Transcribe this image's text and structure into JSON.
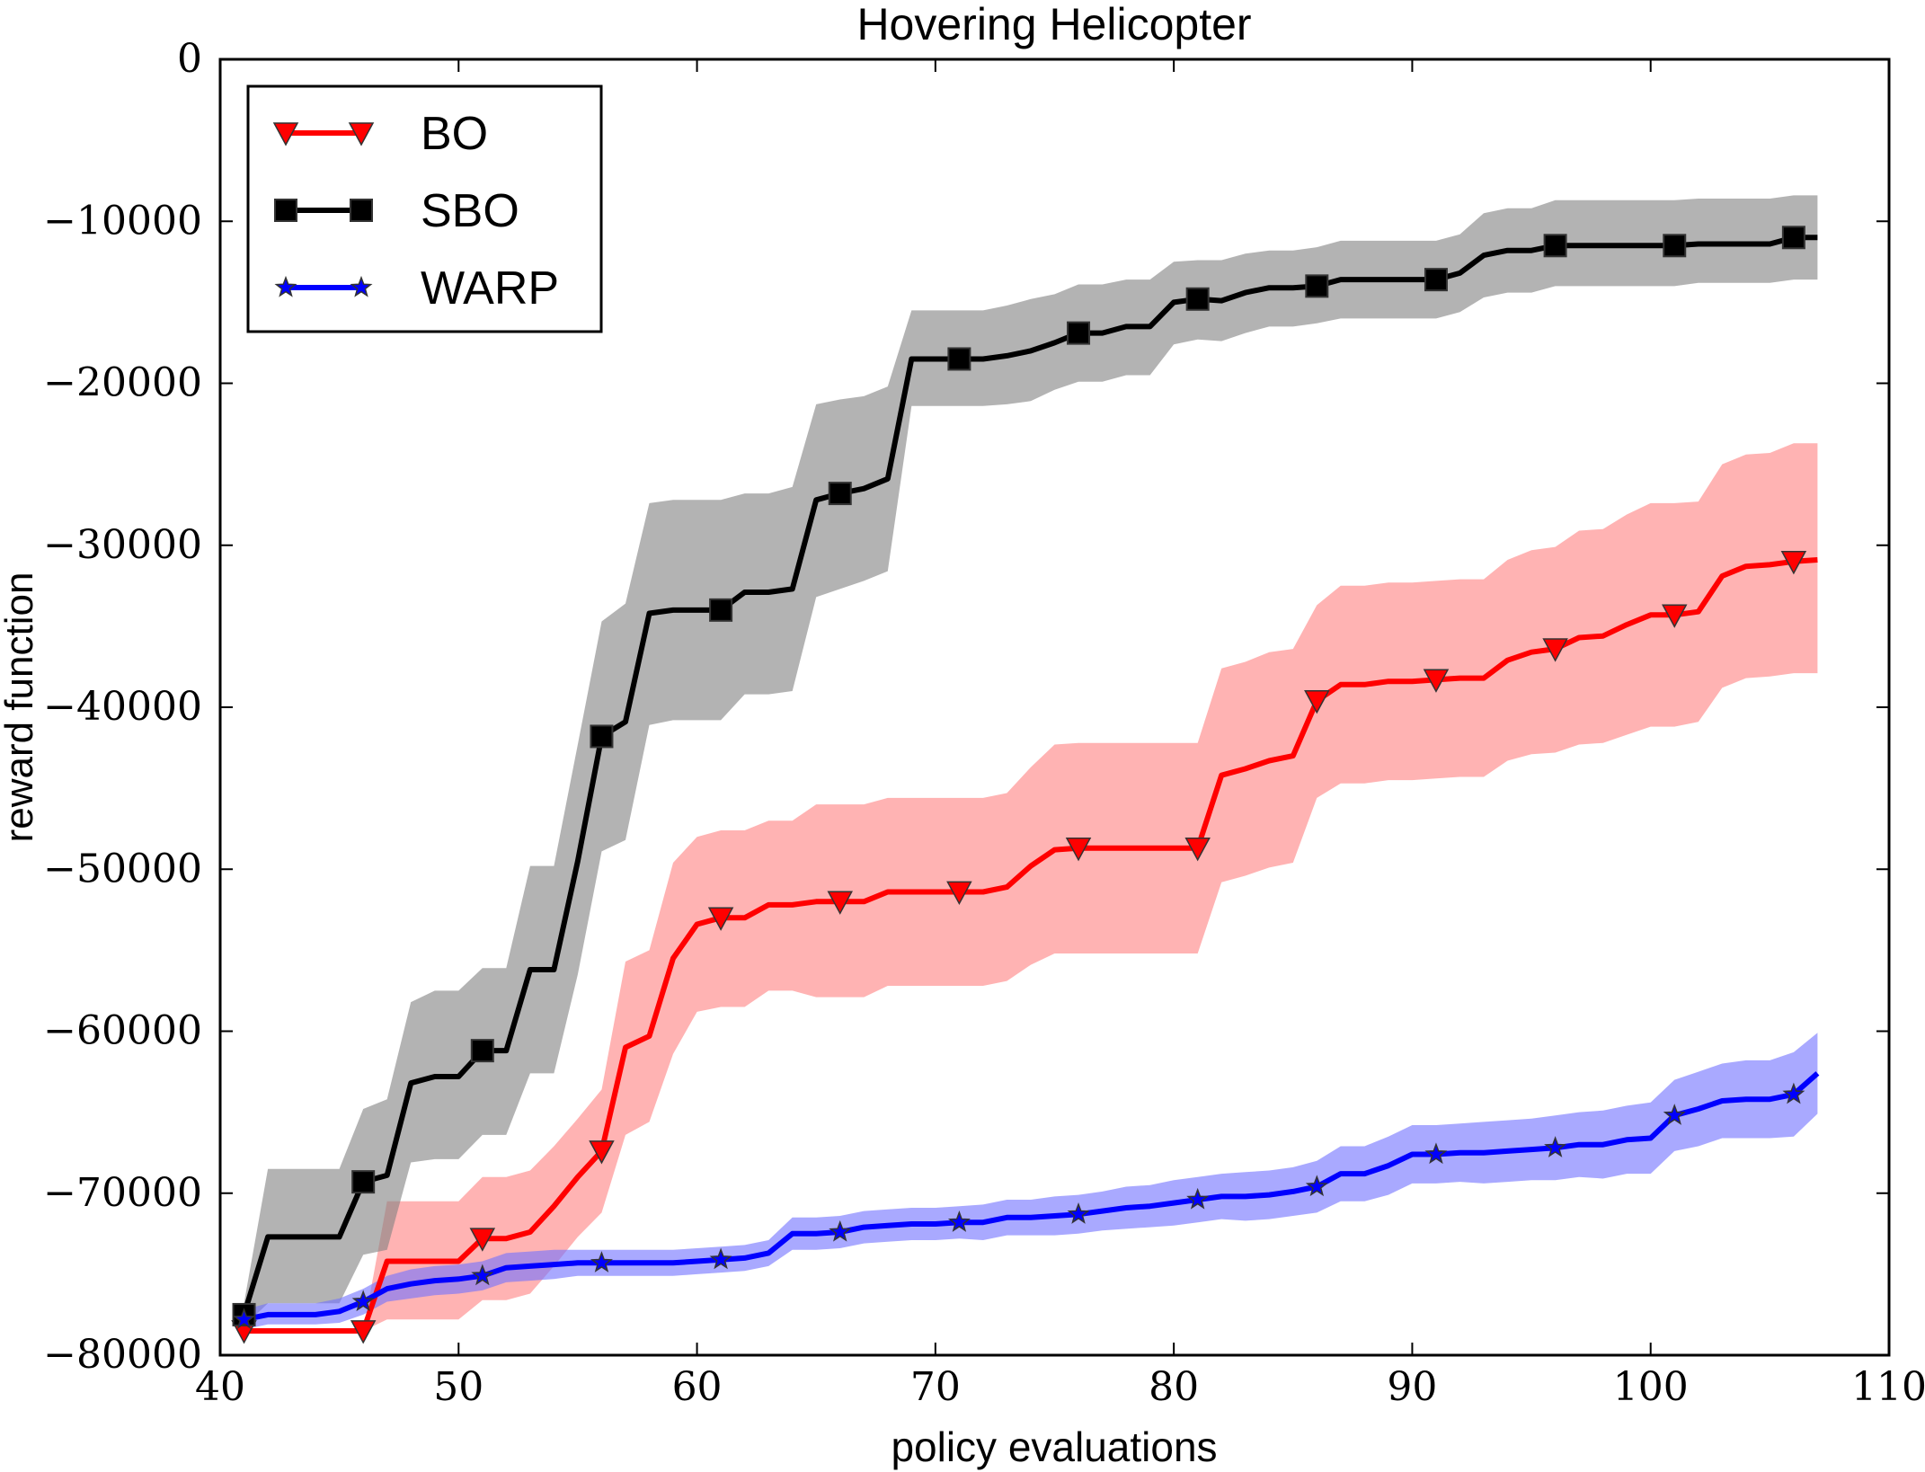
{
  "chart_data": {
    "type": "line",
    "title": "Hovering Helicopter",
    "xlabel": "policy evaluations",
    "ylabel": "reward function",
    "xlim": [
      40,
      110
    ],
    "ylim": [
      -80000,
      0
    ],
    "xticks": [
      40,
      50,
      60,
      70,
      80,
      90,
      100,
      110
    ],
    "yticks": [
      0,
      -10000,
      -20000,
      -30000,
      -40000,
      -50000,
      -60000,
      -70000,
      -80000
    ],
    "xtick_labels": [
      "40",
      "50",
      "60",
      "70",
      "80",
      "90",
      "100",
      "110"
    ],
    "ytick_labels": [
      "0",
      "−10000",
      "−20000",
      "−30000",
      "−40000",
      "−50000",
      "−60000",
      "−70000",
      "−80000"
    ],
    "grid": false,
    "legend_position": "top-left",
    "series": [
      {
        "name": "BO",
        "color": "#ff0000",
        "band_color": "#ff8080",
        "marker": "triangle-down",
        "x": [
          41,
          46,
          47,
          48,
          49,
          50,
          51,
          52,
          53,
          54,
          55,
          56,
          57,
          58,
          59,
          60,
          61,
          62,
          63,
          64,
          65,
          66,
          67,
          68,
          69,
          70,
          71,
          72,
          73,
          74,
          75,
          76,
          77,
          78,
          79,
          80,
          81,
          82,
          83,
          84,
          85,
          86,
          87,
          88,
          89,
          90,
          91,
          92,
          93,
          94,
          95,
          96,
          97,
          98,
          99,
          100,
          101,
          102,
          103,
          104,
          105,
          106,
          107
        ],
        "mean": [
          -78500,
          -78500,
          -74200,
          -74200,
          -74200,
          -74200,
          -72800,
          -72800,
          -72400,
          -70800,
          -69000,
          -67400,
          -61000,
          -60300,
          -55500,
          -53400,
          -53000,
          -53000,
          -52200,
          -52200,
          -52000,
          -52000,
          -52000,
          -51400,
          -51400,
          -51400,
          -51400,
          -51400,
          -51100,
          -49800,
          -48800,
          -48700,
          -48700,
          -48700,
          -48700,
          -48700,
          -48700,
          -44200,
          -43800,
          -43300,
          -43000,
          -39600,
          -38600,
          -38600,
          -38400,
          -38400,
          -38300,
          -38200,
          -38200,
          -37100,
          -36600,
          -36400,
          -35700,
          -35600,
          -34900,
          -34300,
          -34300,
          -34100,
          -31900,
          -31300,
          -31200,
          -31000,
          -30900
        ],
        "upper": [
          -78500,
          -78500,
          -70500,
          -70500,
          -70500,
          -70500,
          -69000,
          -69000,
          -68600,
          -67100,
          -65400,
          -63600,
          -55700,
          -55000,
          -49600,
          -48000,
          -47600,
          -47600,
          -47000,
          -47000,
          -46000,
          -46000,
          -46000,
          -45600,
          -45600,
          -45600,
          -45600,
          -45600,
          -45300,
          -43700,
          -42300,
          -42200,
          -42200,
          -42200,
          -42200,
          -42200,
          -42200,
          -37600,
          -37200,
          -36600,
          -36400,
          -33700,
          -32500,
          -32500,
          -32300,
          -32300,
          -32200,
          -32100,
          -32100,
          -30900,
          -30300,
          -30100,
          -29100,
          -29000,
          -28100,
          -27400,
          -27400,
          -27300,
          -25000,
          -24400,
          -24300,
          -23700,
          -23700
        ],
        "lower": [
          -78500,
          -78500,
          -77800,
          -77800,
          -77800,
          -77800,
          -76600,
          -76600,
          -76200,
          -74500,
          -72700,
          -71200,
          -66400,
          -65600,
          -61400,
          -58800,
          -58500,
          -58500,
          -57500,
          -57500,
          -57900,
          -57900,
          -57900,
          -57200,
          -57200,
          -57200,
          -57200,
          -57200,
          -56900,
          -55900,
          -55200,
          -55200,
          -55200,
          -55200,
          -55200,
          -55200,
          -55200,
          -50800,
          -50400,
          -49900,
          -49600,
          -45600,
          -44700,
          -44700,
          -44500,
          -44500,
          -44400,
          -44300,
          -44300,
          -43300,
          -42900,
          -42800,
          -42300,
          -42200,
          -41700,
          -41200,
          -41200,
          -40900,
          -38800,
          -38200,
          -38100,
          -37900,
          -37900
        ],
        "marker_x": [
          41,
          46,
          51,
          56,
          61,
          66,
          71,
          76,
          81,
          86,
          91,
          96,
          101,
          106
        ]
      },
      {
        "name": "SBO",
        "color": "#000000",
        "band_color": "#808080",
        "marker": "square",
        "x": [
          41,
          42,
          43,
          44,
          45,
          46,
          47,
          48,
          49,
          50,
          51,
          52,
          53,
          54,
          55,
          56,
          57,
          58,
          59,
          60,
          61,
          62,
          63,
          64,
          65,
          66,
          67,
          68,
          69,
          70,
          71,
          72,
          73,
          74,
          75,
          76,
          77,
          78,
          79,
          80,
          81,
          82,
          83,
          84,
          85,
          86,
          87,
          88,
          89,
          90,
          91,
          92,
          93,
          94,
          95,
          96,
          97,
          98,
          99,
          100,
          101,
          102,
          103,
          104,
          105,
          106,
          107
        ],
        "mean": [
          -77500,
          -72700,
          -72700,
          -72700,
          -72700,
          -69300,
          -68900,
          -63200,
          -62800,
          -62800,
          -61200,
          -61200,
          -56200,
          -56200,
          -49500,
          -41800,
          -40900,
          -34200,
          -34000,
          -34000,
          -34000,
          -32900,
          -32900,
          -32700,
          -27200,
          -26800,
          -26500,
          -25900,
          -18500,
          -18500,
          -18500,
          -18500,
          -18300,
          -18000,
          -17500,
          -16900,
          -16900,
          -16500,
          -16500,
          -15000,
          -14800,
          -14900,
          -14400,
          -14100,
          -14100,
          -14000,
          -13600,
          -13600,
          -13600,
          -13600,
          -13600,
          -13200,
          -12100,
          -11800,
          -11800,
          -11500,
          -11500,
          -11500,
          -11500,
          -11500,
          -11500,
          -11400,
          -11400,
          -11400,
          -11400,
          -11000,
          -11000
        ],
        "upper": [
          -76800,
          -68500,
          -68500,
          -68500,
          -68500,
          -64800,
          -64200,
          -58200,
          -57500,
          -57500,
          -56100,
          -56100,
          -49800,
          -49800,
          -42300,
          -34700,
          -33600,
          -27400,
          -27200,
          -27200,
          -27200,
          -26800,
          -26800,
          -26400,
          -21300,
          -21000,
          -20800,
          -20200,
          -15500,
          -15500,
          -15500,
          -15500,
          -15200,
          -14800,
          -14500,
          -13900,
          -13900,
          -13600,
          -13600,
          -12500,
          -12400,
          -12400,
          -12000,
          -11800,
          -11800,
          -11600,
          -11200,
          -11200,
          -11200,
          -11200,
          -11200,
          -10800,
          -9500,
          -9200,
          -9200,
          -8700,
          -8700,
          -8700,
          -8700,
          -8700,
          -8700,
          -8600,
          -8600,
          -8600,
          -8600,
          -8400,
          -8400
        ],
        "lower": [
          -78200,
          -76800,
          -76800,
          -76800,
          -76800,
          -73800,
          -73500,
          -68100,
          -67900,
          -67900,
          -66400,
          -66400,
          -62600,
          -62600,
          -56500,
          -48900,
          -48200,
          -41100,
          -40800,
          -40800,
          -40800,
          -39200,
          -39200,
          -39000,
          -33200,
          -32700,
          -32200,
          -31600,
          -21400,
          -21400,
          -21400,
          -21400,
          -21300,
          -21100,
          -20400,
          -19900,
          -19900,
          -19500,
          -19500,
          -17600,
          -17300,
          -17400,
          -16900,
          -16500,
          -16500,
          -16300,
          -16000,
          -16000,
          -16000,
          -16000,
          -16000,
          -15600,
          -14700,
          -14400,
          -14400,
          -14000,
          -14000,
          -14000,
          -14000,
          -14000,
          -14000,
          -13800,
          -13800,
          -13800,
          -13800,
          -13600,
          -13600
        ],
        "marker_x": [
          41,
          46,
          51,
          56,
          61,
          66,
          71,
          76,
          81,
          86,
          91,
          96,
          101,
          106
        ]
      },
      {
        "name": "WARP",
        "color": "#0000ff",
        "band_color": "#7070ff",
        "marker": "star",
        "x": [
          41,
          42,
          43,
          44,
          45,
          46,
          47,
          48,
          49,
          50,
          51,
          52,
          53,
          54,
          55,
          56,
          57,
          58,
          59,
          60,
          61,
          62,
          63,
          64,
          65,
          66,
          67,
          68,
          69,
          70,
          71,
          72,
          73,
          74,
          75,
          76,
          77,
          78,
          79,
          80,
          81,
          82,
          83,
          84,
          85,
          86,
          87,
          88,
          89,
          90,
          91,
          92,
          93,
          94,
          95,
          96,
          97,
          98,
          99,
          100,
          101,
          102,
          103,
          104,
          105,
          106,
          107
        ],
        "mean": [
          -77800,
          -77500,
          -77500,
          -77500,
          -77300,
          -76700,
          -75900,
          -75600,
          -75400,
          -75300,
          -75100,
          -74600,
          -74500,
          -74400,
          -74300,
          -74300,
          -74300,
          -74300,
          -74300,
          -74200,
          -74100,
          -74000,
          -73700,
          -72500,
          -72500,
          -72400,
          -72100,
          -72000,
          -71900,
          -71900,
          -71800,
          -71800,
          -71500,
          -71500,
          -71400,
          -71300,
          -71100,
          -70900,
          -70800,
          -70600,
          -70400,
          -70200,
          -70200,
          -70100,
          -69900,
          -69600,
          -68800,
          -68800,
          -68300,
          -67600,
          -67600,
          -67500,
          -67500,
          -67400,
          -67300,
          -67200,
          -67000,
          -67000,
          -66700,
          -66600,
          -65200,
          -64800,
          -64300,
          -64200,
          -64200,
          -63900,
          -62600
        ],
        "upper": [
          -77200,
          -76800,
          -76800,
          -76800,
          -76500,
          -75900,
          -75100,
          -74700,
          -74500,
          -74400,
          -74200,
          -73700,
          -73600,
          -73500,
          -73500,
          -73500,
          -73500,
          -73500,
          -73500,
          -73400,
          -73300,
          -73200,
          -72900,
          -71500,
          -71500,
          -71400,
          -71100,
          -71000,
          -70900,
          -70900,
          -70800,
          -70700,
          -70400,
          -70400,
          -70200,
          -70100,
          -69900,
          -69600,
          -69500,
          -69200,
          -69000,
          -68800,
          -68700,
          -68600,
          -68400,
          -68000,
          -67100,
          -67100,
          -66500,
          -65800,
          -65800,
          -65700,
          -65600,
          -65500,
          -65400,
          -65200,
          -65000,
          -64900,
          -64600,
          -64400,
          -63000,
          -62500,
          -62000,
          -61800,
          -61800,
          -61300,
          -60100
        ],
        "lower": [
          -78400,
          -78100,
          -78100,
          -78100,
          -78000,
          -77500,
          -76700,
          -76500,
          -76300,
          -76200,
          -76000,
          -75500,
          -75400,
          -75300,
          -75100,
          -75100,
          -75100,
          -75100,
          -75100,
          -75000,
          -74900,
          -74800,
          -74500,
          -73500,
          -73500,
          -73400,
          -73100,
          -73000,
          -72900,
          -72900,
          -72800,
          -72900,
          -72600,
          -72600,
          -72600,
          -72500,
          -72300,
          -72200,
          -72100,
          -72000,
          -71800,
          -71600,
          -71700,
          -71600,
          -71400,
          -71200,
          -70500,
          -70500,
          -70100,
          -69400,
          -69400,
          -69300,
          -69400,
          -69300,
          -69200,
          -69200,
          -69000,
          -69100,
          -68800,
          -68800,
          -67400,
          -67100,
          -66600,
          -66600,
          -66600,
          -66500,
          -65100
        ],
        "marker_x": [
          41,
          46,
          51,
          56,
          61,
          66,
          71,
          76,
          81,
          86,
          91,
          96,
          101,
          106
        ]
      }
    ]
  }
}
